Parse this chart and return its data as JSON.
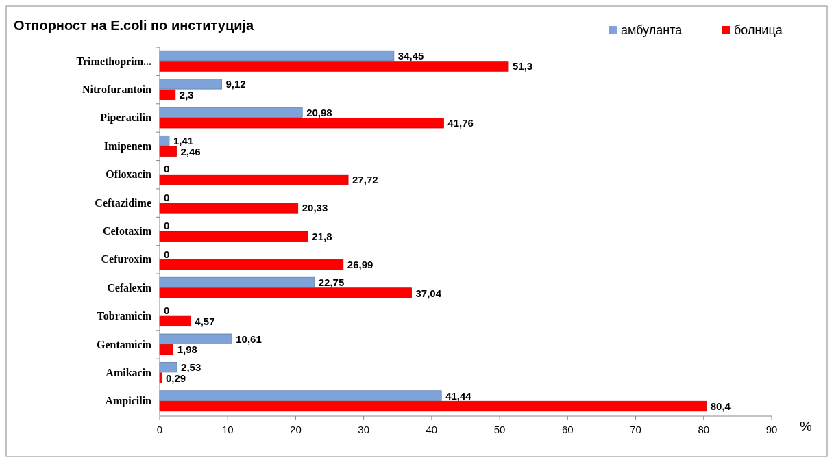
{
  "chart_data": {
    "type": "bar",
    "orientation": "horizontal",
    "title": "Отпорност на E.coli по институција",
    "xlabel": "%",
    "categories": [
      "Trimethoprim...",
      "Nitrofurantoin",
      "Piperacilin",
      "Imipenem",
      "Ofloxacin",
      "Ceftazidime",
      "Cefotaxim",
      "Cefuroxim",
      "Cefalexin",
      "Tobramicin",
      "Gentamicin",
      "Amikacin",
      "Ampicilin"
    ],
    "series": [
      {
        "name": "амбуланта",
        "color": "#7da3d8",
        "values": [
          34.45,
          9.12,
          20.98,
          1.41,
          0,
          0,
          0,
          0,
          22.75,
          0,
          10.61,
          2.53,
          41.44
        ],
        "value_labels": [
          "34,45",
          "9,12",
          "20,98",
          "1,41",
          "0",
          "0",
          "0",
          "0",
          "22,75",
          "0",
          "10,61",
          "2,53",
          "41,44"
        ]
      },
      {
        "name": "болница",
        "color": "#ff0000",
        "values": [
          51.3,
          2.3,
          41.76,
          2.46,
          27.72,
          20.33,
          21.8,
          26.99,
          37.04,
          4.57,
          1.98,
          0.29,
          80.4
        ],
        "value_labels": [
          "51,3",
          "2,3",
          "41,76",
          "2,46",
          "27,72",
          "20,33",
          "21,8",
          "26,99",
          "37,04",
          "4,57",
          "1,98",
          "0,29",
          "80,4"
        ]
      }
    ],
    "xlim": [
      0,
      90
    ],
    "xticks": [
      0,
      10,
      20,
      30,
      40,
      50,
      60,
      70,
      80,
      90
    ],
    "grid": false,
    "legend": "top right"
  }
}
